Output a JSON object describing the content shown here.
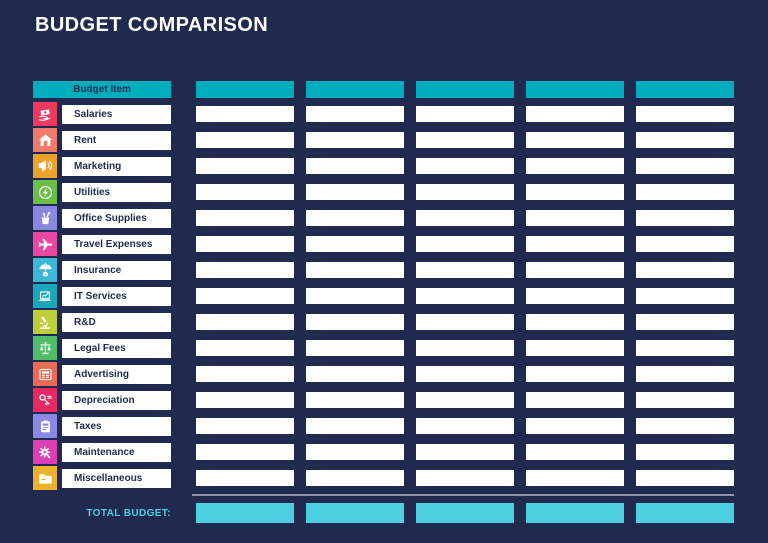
{
  "title": "BUDGET COMPARISON",
  "table": {
    "header": {
      "budget_item_label": "Budget Item",
      "value_columns": [
        "",
        "",
        "",
        "",
        ""
      ]
    },
    "rows": [
      {
        "label": "Salaries",
        "icon": "cash-hand",
        "color": "#EF3A5F",
        "values": [
          "",
          "",
          "",
          "",
          ""
        ]
      },
      {
        "label": "Rent",
        "icon": "house",
        "color": "#EF7B6B",
        "values": [
          "",
          "",
          "",
          "",
          ""
        ]
      },
      {
        "label": "Marketing",
        "icon": "megaphone",
        "color": "#EBA32B",
        "values": [
          "",
          "",
          "",
          "",
          ""
        ]
      },
      {
        "label": "Utilities",
        "icon": "bolt",
        "color": "#6CBE4B",
        "values": [
          "",
          "",
          "",
          "",
          ""
        ]
      },
      {
        "label": "Office Supplies",
        "icon": "pencil-cup",
        "color": "#8B87E0",
        "values": [
          "",
          "",
          "",
          "",
          ""
        ]
      },
      {
        "label": "Travel Expenses",
        "icon": "airplane",
        "color": "#EA47A2",
        "values": [
          "",
          "",
          "",
          "",
          ""
        ]
      },
      {
        "label": "Insurance",
        "icon": "umbrella",
        "color": "#3FB8D8",
        "values": [
          "",
          "",
          "",
          "",
          ""
        ]
      },
      {
        "label": "IT Services",
        "icon": "laptop",
        "color": "#1AA7BC",
        "values": [
          "",
          "",
          "",
          "",
          ""
        ]
      },
      {
        "label": "R&D",
        "icon": "microscope",
        "color": "#BFCE3B",
        "values": [
          "",
          "",
          "",
          "",
          ""
        ]
      },
      {
        "label": "Legal Fees",
        "icon": "scales",
        "color": "#4FBE68",
        "values": [
          "",
          "",
          "",
          "",
          ""
        ]
      },
      {
        "label": "Advertising",
        "icon": "newspaper",
        "color": "#E96A55",
        "values": [
          "",
          "",
          "",
          "",
          ""
        ]
      },
      {
        "label": "Depreciation",
        "icon": "key",
        "color": "#E82862",
        "values": [
          "",
          "",
          "",
          "",
          ""
        ]
      },
      {
        "label": "Taxes",
        "icon": "clipboard",
        "color": "#8D88E5",
        "values": [
          "",
          "",
          "",
          "",
          ""
        ]
      },
      {
        "label": "Maintenance",
        "icon": "gear-wrench",
        "color": "#DD3EB4",
        "values": [
          "",
          "",
          "",
          "",
          ""
        ]
      },
      {
        "label": "Miscellaneous",
        "icon": "folder",
        "color": "#ECB22E",
        "values": [
          "",
          "",
          "",
          "",
          ""
        ]
      }
    ],
    "total": {
      "label": "TOTAL BUDGET:",
      "values": [
        "",
        "",
        "",
        "",
        ""
      ]
    }
  },
  "colors": {
    "background": "#1F2A4E",
    "header-teal": "#00ADBC",
    "total-cyan": "#4CCFE0",
    "divider": "#9095AD",
    "text-dark": "#1F2A4E",
    "title-text": "#FFFFFF",
    "total-label": "#4CCFE0"
  }
}
